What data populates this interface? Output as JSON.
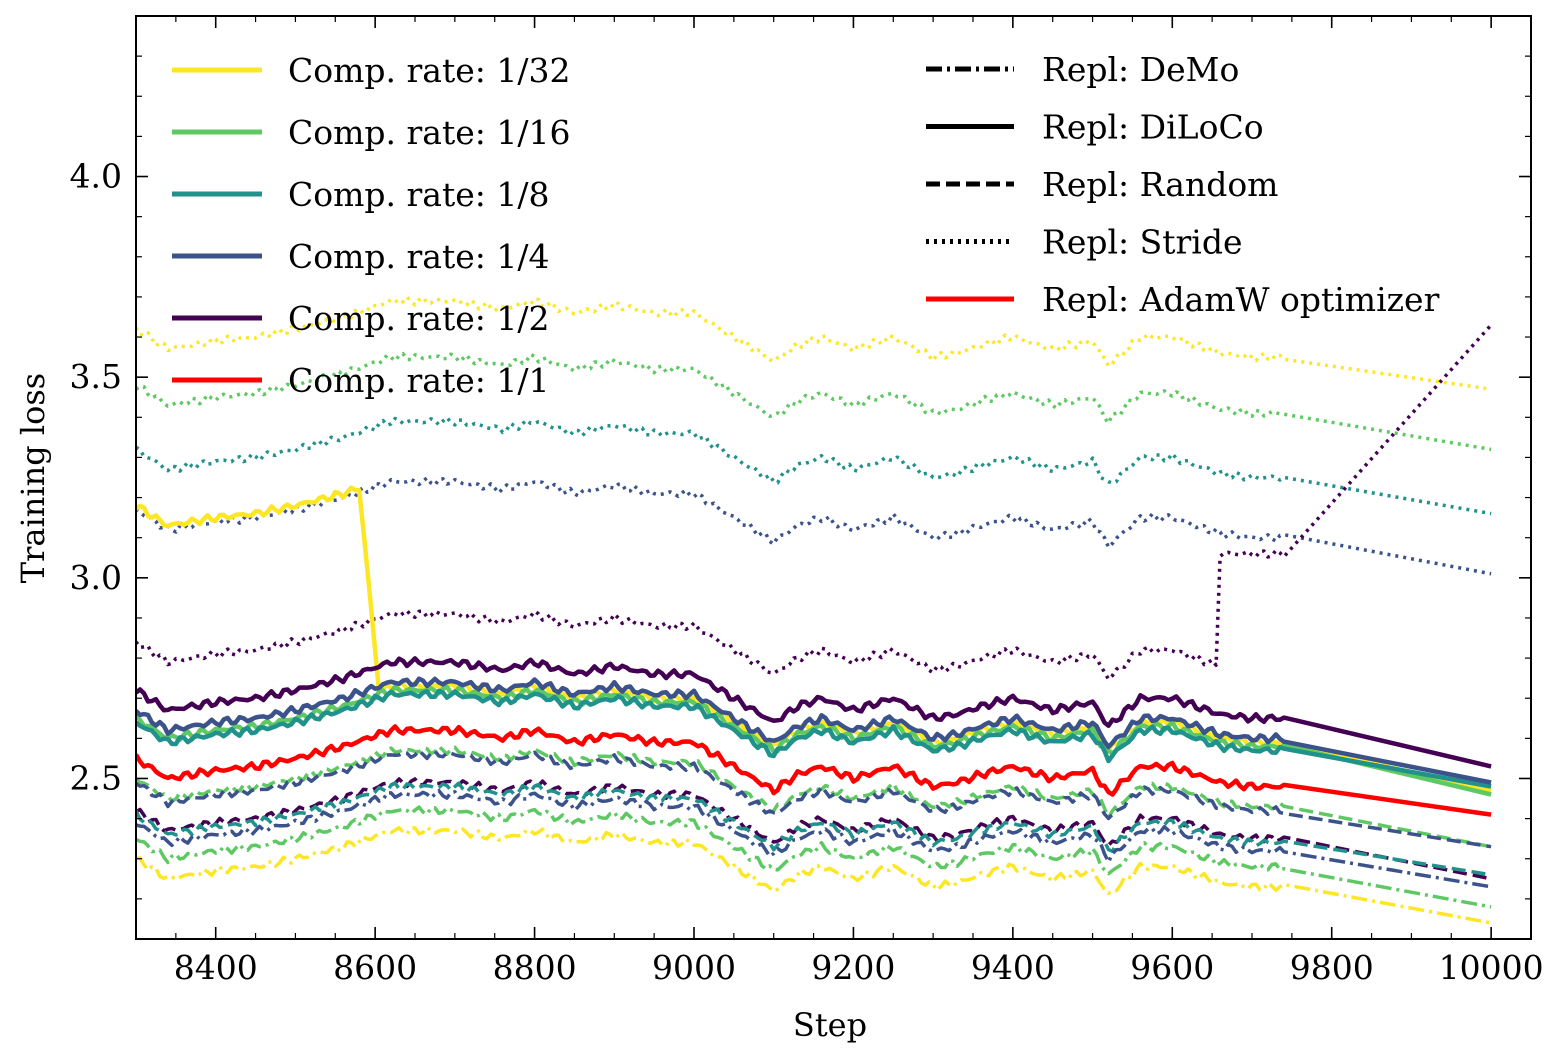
{
  "chart_data": {
    "type": "line",
    "title": "",
    "xlabel": "Step",
    "ylabel": "Training loss",
    "xlim": [
      8300,
      10050
    ],
    "ylim": [
      2.1,
      4.4
    ],
    "xticks": [
      8400,
      8600,
      8800,
      9000,
      9200,
      9400,
      9600,
      9800,
      10000
    ],
    "xtick_labels": [
      "8400",
      "8600",
      "8800",
      "9000",
      "9200",
      "9400",
      "9600",
      "9800",
      "10000"
    ],
    "yticks": [
      2.5,
      3.0,
      3.5,
      4.0
    ],
    "ytick_labels": [
      "2.5",
      "3.0",
      "3.5",
      "4.0"
    ],
    "legend_rates": [
      {
        "label": "Comp. rate: 1/32",
        "color": "#fde725"
      },
      {
        "label": "Comp. rate: 1/16",
        "color": "#5ec962"
      },
      {
        "label": "Comp. rate: 1/8",
        "color": "#21918c"
      },
      {
        "label": "Comp. rate: 1/4",
        "color": "#3b528b"
      },
      {
        "label": "Comp. rate: 1/2",
        "color": "#440154"
      },
      {
        "label": "Comp. rate: 1/1",
        "color": "#ff0000"
      }
    ],
    "legend_methods": [
      {
        "label": "Repl: DeMo",
        "style": "dashdot",
        "color": "#000000"
      },
      {
        "label": "Repl: DiLoCo",
        "style": "solid",
        "color": "#000000"
      },
      {
        "label": "Repl: Random",
        "style": "dashed",
        "color": "#000000"
      },
      {
        "label": "Repl: Stride",
        "style": "dotted",
        "color": "#000000"
      },
      {
        "label": "Repl: AdamW optimizer",
        "style": "solid",
        "color": "#ff0000"
      }
    ],
    "series": [
      {
        "name": "Stride 1/32",
        "method": "Stride",
        "color": "#fde725",
        "style": "dotted",
        "base": 3.62,
        "end": 3.47
      },
      {
        "name": "Stride 1/16",
        "method": "Stride",
        "color": "#5ec962",
        "style": "dotted",
        "base": 3.48,
        "end": 3.32
      },
      {
        "name": "Stride 1/8",
        "method": "Stride",
        "color": "#21918c",
        "style": "dotted",
        "base": 3.32,
        "end": 3.16
      },
      {
        "name": "Stride 1/4",
        "method": "Stride",
        "color": "#3b528b",
        "style": "dotted",
        "base": 3.17,
        "end": 3.01
      },
      {
        "name": "Stride 1/2",
        "method": "Stride",
        "color": "#440154",
        "style": "dotted",
        "base": 2.84,
        "end": 3.63,
        "jump_step": 9660,
        "jump_to": 3.06
      },
      {
        "name": "DiLoCo 1/32",
        "method": "DiLoCo",
        "color": "#fde725",
        "style": "solid",
        "base": 2.66,
        "end": 2.47,
        "early_base": 3.18,
        "drop_step": 8580
      },
      {
        "name": "DiLoCo 1/16",
        "method": "DiLoCo",
        "color": "#5ec962",
        "style": "solid",
        "base": 2.65,
        "end": 2.46
      },
      {
        "name": "DiLoCo 1/8",
        "method": "DiLoCo",
        "color": "#21918c",
        "style": "solid",
        "base": 2.64,
        "end": 2.48
      },
      {
        "name": "DiLoCo 1/4",
        "method": "DiLoCo",
        "color": "#3b528b",
        "style": "solid",
        "base": 2.67,
        "end": 2.49
      },
      {
        "name": "DiLoCo 1/2",
        "method": "DiLoCo",
        "color": "#440154",
        "style": "solid",
        "base": 2.72,
        "end": 2.53
      },
      {
        "name": "AdamW 1/1",
        "method": "AdamW",
        "color": "#ff0000",
        "style": "solid",
        "base": 2.55,
        "end": 2.41
      },
      {
        "name": "Random 1/16",
        "method": "Random",
        "color": "#5ec962",
        "style": "dashed",
        "base": 2.5,
        "end": 2.33
      },
      {
        "name": "Random 1/4",
        "method": "Random",
        "color": "#3b528b",
        "style": "dashed",
        "base": 2.49,
        "end": 2.33
      },
      {
        "name": "Random 1/2",
        "method": "Random",
        "color": "#440154",
        "style": "dashed",
        "base": 2.42,
        "end": 2.25
      },
      {
        "name": "Random 1/8",
        "method": "Random",
        "color": "#21918c",
        "style": "dashed",
        "base": 2.41,
        "end": 2.26
      },
      {
        "name": "DeMo 1/4",
        "method": "DeMo",
        "color": "#3b528b",
        "style": "dashdot",
        "base": 2.39,
        "end": 2.23
      },
      {
        "name": "DeMo 1/16",
        "method": "DeMo",
        "color": "#5ec962",
        "style": "dashdot",
        "base": 2.35,
        "end": 2.18
      },
      {
        "name": "DeMo 1/32",
        "method": "DeMo",
        "color": "#fde725",
        "style": "dashdot",
        "base": 2.3,
        "end": 2.14
      }
    ],
    "shared_fluctuation": {
      "steps": [
        8300,
        8340,
        8400,
        8450,
        8500,
        8560,
        8620,
        8700,
        8760,
        8800,
        8850,
        8900,
        8950,
        9000,
        9050,
        9100,
        9130,
        9160,
        9200,
        9250,
        9300,
        9330,
        9360,
        9400,
        9450,
        9500,
        9520,
        9560,
        9600,
        9630,
        9660,
        9700,
        9740
      ],
      "offsets": [
        0.0,
        -0.05,
        -0.03,
        -0.02,
        0.0,
        0.03,
        0.07,
        0.07,
        0.05,
        0.07,
        0.04,
        0.06,
        0.04,
        0.04,
        -0.02,
        -0.08,
        -0.04,
        -0.02,
        -0.05,
        -0.02,
        -0.07,
        -0.06,
        -0.04,
        -0.02,
        -0.05,
        -0.03,
        -0.09,
        -0.02,
        -0.02,
        -0.04,
        -0.06,
        -0.07,
        -0.07
      ]
    },
    "solid_tail_start": 9740,
    "tail_end": 10000,
    "legend_position": "top"
  }
}
